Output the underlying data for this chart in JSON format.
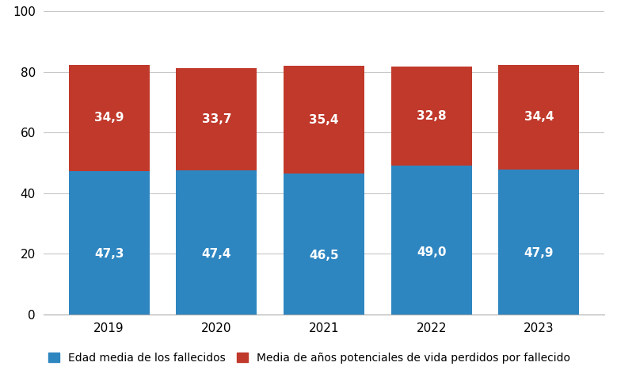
{
  "years": [
    "2019",
    "2020",
    "2021",
    "2022",
    "2023"
  ],
  "edad_media": [
    47.3,
    47.4,
    46.5,
    49.0,
    47.9
  ],
  "anos_perdidos": [
    34.9,
    33.7,
    35.4,
    32.8,
    34.4
  ],
  "color_edad": "#2E86C1",
  "color_anos": "#C0392B",
  "ylim": [
    0,
    100
  ],
  "yticks": [
    0,
    20,
    40,
    60,
    80,
    100
  ],
  "legend_edad": "Edad media de los fallecidos",
  "legend_anos": "Media de años potenciales de vida perdidos por fallecido",
  "bar_width": 0.75,
  "label_fontsize_bar": 11,
  "tick_fontsize": 11,
  "legend_fontsize": 10,
  "background_color": "#ffffff",
  "grid_color": "#c8c8c8"
}
